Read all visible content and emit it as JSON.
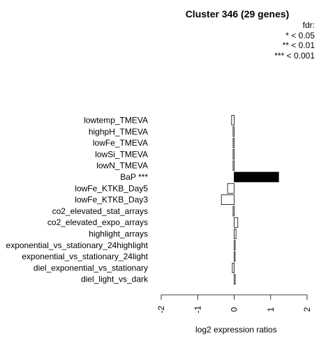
{
  "chart_data": {
    "type": "bar",
    "orientation": "horizontal",
    "title": "Cluster 346 (29 genes)",
    "xlabel": "log2 expression ratios",
    "ylabel": "",
    "xlim": [
      -2,
      2
    ],
    "xticks": [
      "-2",
      "-1",
      "0",
      "1",
      "2"
    ],
    "grid": false,
    "legend": {
      "position": "top-right",
      "title": "fdr:",
      "entries": [
        "* < 0.05",
        "** < 0.01",
        "*** < 0.001"
      ]
    },
    "categories": [
      "lowtemp_TMEVA",
      "highpH_TMEVA",
      "lowFe_TMEVA",
      "lowSi_TMEVA",
      "lowN_TMEVA",
      "BaP ***",
      "lowFe_KTKB_Day5",
      "lowFe_KTKB_Day3",
      "co2_elevated_stat_arrays",
      "co2_elevated_expo_arrays",
      "highlight_arrays",
      "exponential_vs_stationary_24highlight",
      "exponential_vs_stationary_24light",
      "diel_exponential_vs_stationary",
      "diel_light_vs_dark"
    ],
    "values": [
      -0.07,
      -0.03,
      -0.03,
      -0.03,
      -0.03,
      1.22,
      -0.18,
      -0.35,
      -0.03,
      0.1,
      0.05,
      0.03,
      0.02,
      -0.05,
      0.03
    ],
    "colors": [
      "#ffffff",
      "#ffffff",
      "#ffffff",
      "#ffffff",
      "#ffffff",
      "#000000",
      "#ffffff",
      "#ffffff",
      "#ffffff",
      "#ffffff",
      "#ffffff",
      "#ffffff",
      "#ffffff",
      "#ffffff",
      "#ffffff"
    ]
  }
}
